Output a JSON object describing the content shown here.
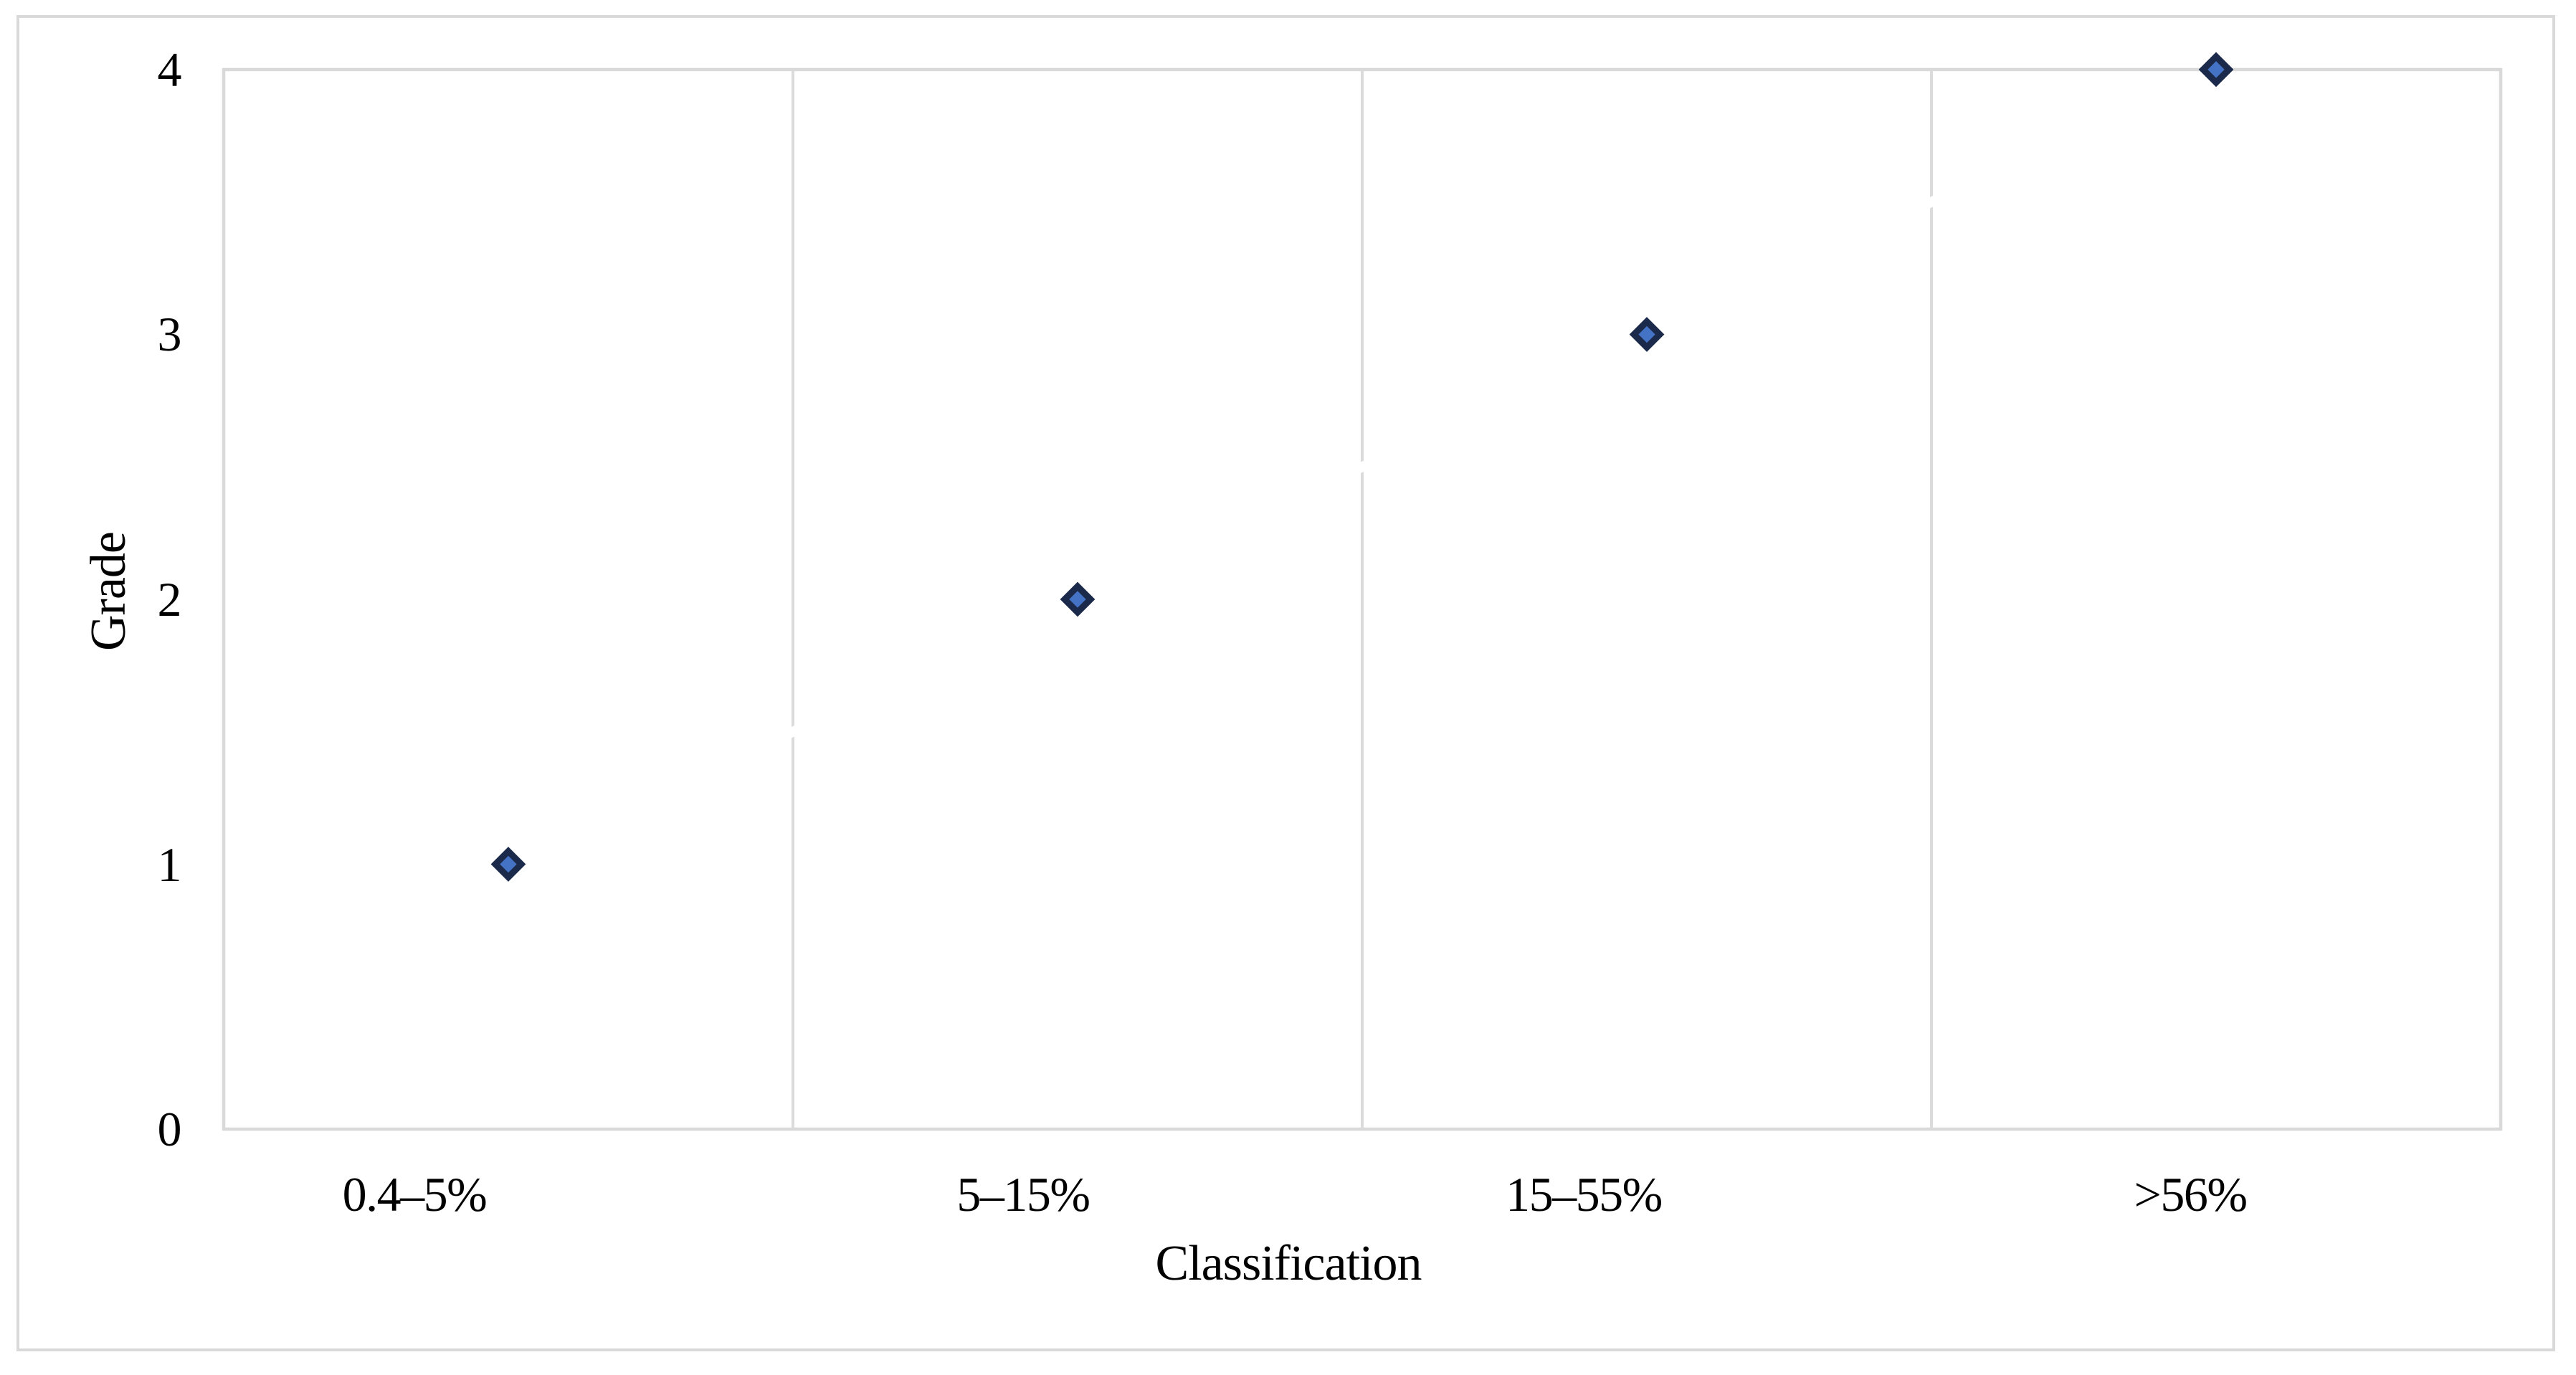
{
  "figure": {
    "background": "#FFFFFF"
  },
  "chart_data": {
    "type": "scatter",
    "title": "",
    "xlabel": "Classification",
    "ylabel": "Grade",
    "categories": [
      "0.4–5%",
      "5–15%",
      "15–55%",
      ">56%"
    ],
    "values": [
      1,
      2,
      3,
      4
    ],
    "yticks": [
      "0",
      "1",
      "2",
      "3",
      "4"
    ],
    "ylim": [
      0,
      4
    ],
    "grid": "vertical-category-separators",
    "legend_position": "none",
    "marker": {
      "shape": "diamond",
      "fill": "#4472C4",
      "stroke": "#1B2A4A"
    },
    "colors": {
      "figure_border": "#D9D9D9",
      "plot_border": "#D9D9D9",
      "gridline": "#DBDBDB",
      "connector": "#FFFFFF"
    }
  }
}
